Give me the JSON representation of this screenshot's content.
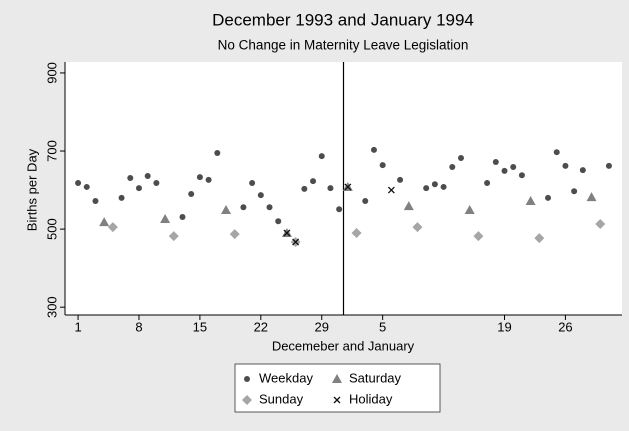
{
  "chart_data": {
    "type": "scatter",
    "title": "December 1993 and January 1994",
    "subtitle": "No Change in Maternity Leave Legislation",
    "y_label": "Births per Day",
    "x_label": "Decemeber and January",
    "xlim": [
      -0.5,
      63.5
    ],
    "ylim": [
      280,
      928
    ],
    "yticks": [
      300,
      500,
      700,
      900
    ],
    "xticks": [
      1,
      8,
      15,
      22,
      29,
      {
        "value": 36,
        "label": "5"
      },
      {
        "value": 50,
        "label": "19"
      },
      {
        "value": 57,
        "label": "26"
      }
    ],
    "xline": 31.5,
    "legend": "bottom",
    "series": [
      {
        "name": "Weekday",
        "color": "#4d4d4d",
        "marker": "circle",
        "x": [
          1,
          2,
          3,
          6,
          7,
          8,
          9,
          10,
          13,
          14,
          15,
          16,
          17,
          20,
          21,
          22,
          23,
          24,
          27,
          28,
          29,
          30,
          31,
          34,
          35,
          36,
          38,
          41,
          42,
          43,
          44,
          45,
          48,
          49,
          50,
          51,
          52,
          55,
          56,
          57,
          58,
          59,
          62
        ],
        "values": [
          618,
          608,
          572,
          580,
          631,
          605,
          636,
          618,
          531,
          590,
          633,
          626,
          695,
          556,
          618,
          587,
          556,
          520,
          603,
          623,
          687,
          605,
          551,
          572,
          703,
          664,
          626,
          605,
          615,
          608,
          659,
          682,
          618,
          672,
          649,
          659,
          638,
          580,
          697,
          662,
          597,
          651,
          662
        ]
      },
      {
        "name": "Sunday",
        "color": "#a6a6a6",
        "marker": "diamond",
        "x": [
          5,
          12,
          19,
          26,
          33,
          40,
          47,
          54,
          61
        ],
        "values": [
          505,
          482,
          487,
          467,
          490,
          505,
          482,
          477,
          513
        ]
      },
      {
        "name": "Saturday",
        "color": "#808080",
        "marker": "triangle",
        "x": [
          4,
          11,
          18,
          25,
          32,
          39,
          46,
          53,
          60
        ],
        "values": [
          518,
          526,
          549,
          490,
          608,
          559,
          549,
          572,
          582
        ]
      },
      {
        "name": "Holiday",
        "color": "#111111",
        "marker": "x",
        "x": [
          25,
          26,
          32,
          37
        ],
        "values": [
          490,
          467,
          608,
          600
        ]
      }
    ]
  }
}
